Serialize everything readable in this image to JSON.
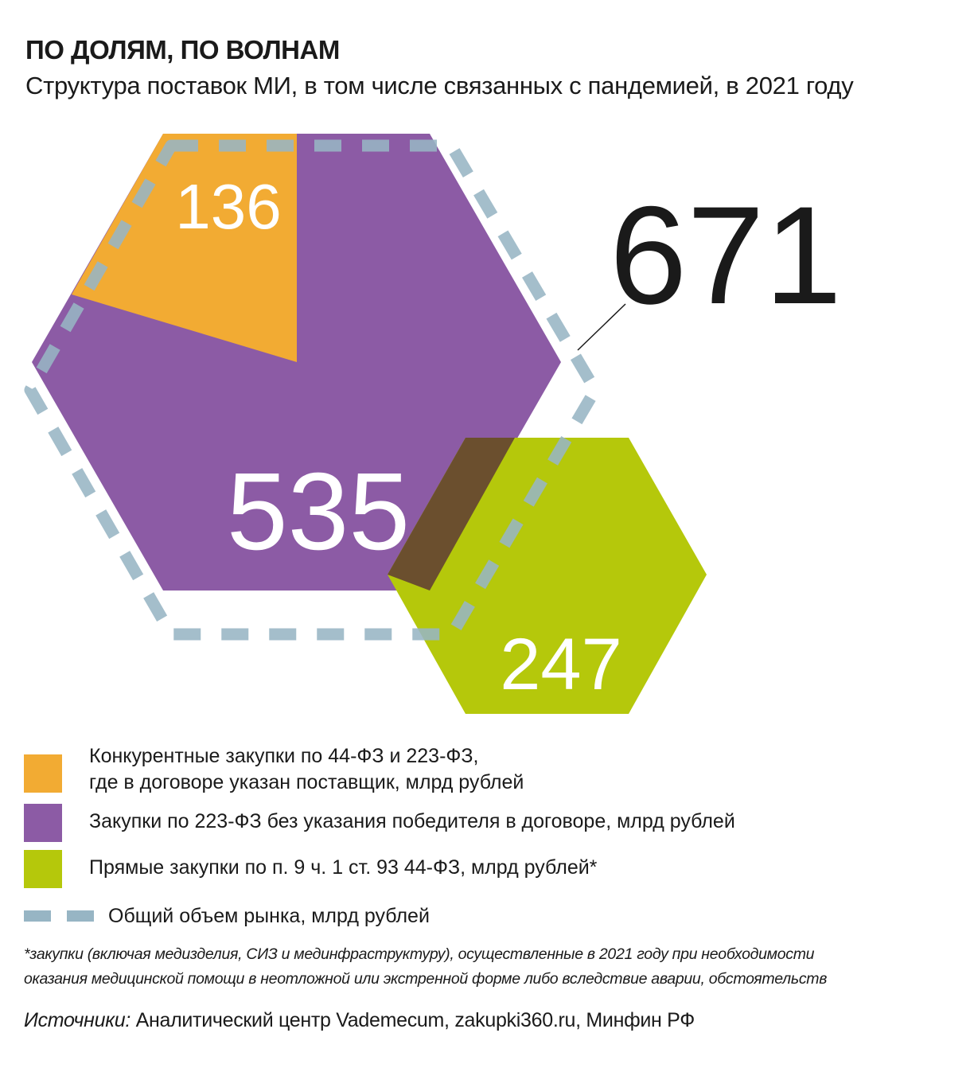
{
  "header": {
    "title": "ПО ДОЛЯМ, ПО ВОЛНАМ",
    "subtitle": "Структура поставок МИ, в том числе связанных с пандемией, в 2021 году"
  },
  "chart_data": {
    "type": "hexagon-composition",
    "title": "ПО ДОЛЯМ, ПО ВОЛНАМ",
    "subtitle": "Структура поставок МИ, в том числе связанных с пандемией, в 2021 году",
    "unit": "млрд рублей",
    "series": [
      {
        "name": "Конкурентные закупки по 44-ФЗ и 223-ФЗ, где в договоре указан поставщик",
        "value": 136,
        "label": "136",
        "color": "#f2ab33"
      },
      {
        "name": "Закупки по 223-ФЗ без указания победителя в договоре",
        "value": 535,
        "label": "535",
        "color": "#8c5ba5"
      },
      {
        "name": "Прямые закупки по п. 9 ч. 1 ст. 93 44-ФЗ",
        "value": 247,
        "label": "247",
        "color": "#b5c80b"
      }
    ],
    "total": {
      "name": "Общий объем рынка",
      "value": 671,
      "label": "671",
      "color": "#97b5c4"
    },
    "overlap_color": "#6b4f2e"
  },
  "legend": {
    "items": [
      {
        "line1": "Конкурентные закупки по 44-ФЗ и 223-ФЗ,",
        "line2": "где в договоре указан поставщик, млрд рублей",
        "color": "#f2ab33"
      },
      {
        "line1": "Закупки по 223-ФЗ без указания победителя в договоре, млрд рублей",
        "color": "#8c5ba5"
      },
      {
        "line1": "Прямые закупки по п. 9 ч. 1 ст. 93 44-ФЗ, млрд рублей*",
        "color": "#b5c80b"
      },
      {
        "line1": "Общий объем рынка, млрд рублей",
        "color": "#97b5c4"
      }
    ]
  },
  "footnote": {
    "line1": "*закупки (включая медизделия, СИЗ и診 мединфраструктуру), осуществленные в 2021 году при необходимости",
    "line2": "оказания медицинской помощи в неотложной или экстренной форме либо вследствие аварии, обстоятельств"
  },
  "sources": {
    "label": "Источники:",
    "text": " Аналитический центр Vademecum, zakupki360.ru, Минфин РФ"
  }
}
